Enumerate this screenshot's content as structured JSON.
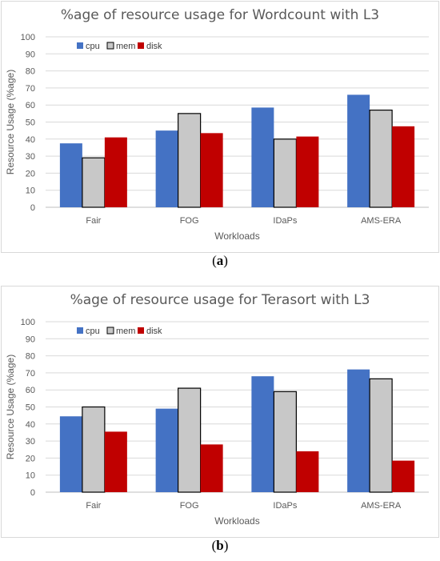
{
  "colors": {
    "cpu": "#4472c4",
    "mem": "#c8c8c8",
    "disk": "#c00000",
    "grid": "#d9d9d9",
    "text": "#595959"
  },
  "captions": {
    "a": "a",
    "b": "b"
  },
  "chart_data": [
    {
      "type": "bar",
      "title": "%age of resource usage for Wordcount with  L3",
      "xlabel": "Workloads",
      "ylabel": "Resource Usage (%age)",
      "categories": [
        "Fair",
        "FOG",
        "IDaPs",
        "AMS-ERA"
      ],
      "yticks": [
        "0",
        "10",
        "20",
        "30",
        "40",
        "50",
        "60",
        "70",
        "80",
        "90",
        "100"
      ],
      "ylim": [
        0,
        100
      ],
      "grid": true,
      "legend_position": "top-left",
      "series": [
        {
          "name": "cpu",
          "values": [
            37.5,
            45,
            58.5,
            66
          ]
        },
        {
          "name": "mem",
          "values": [
            29,
            55,
            40,
            57
          ]
        },
        {
          "name": "disk",
          "values": [
            41,
            43.5,
            41.5,
            47.5
          ]
        }
      ]
    },
    {
      "type": "bar",
      "title": "%age of resource usage for Terasort with  L3",
      "xlabel": "Workloads",
      "ylabel": "Resource Usage (%age)",
      "categories": [
        "Fair",
        "FOG",
        "IDaPs",
        "AMS-ERA"
      ],
      "yticks": [
        "0",
        "10",
        "20",
        "30",
        "40",
        "50",
        "60",
        "70",
        "80",
        "90",
        "100"
      ],
      "ylim": [
        0,
        100
      ],
      "grid": true,
      "legend_position": "top-left",
      "series": [
        {
          "name": "cpu",
          "values": [
            44.5,
            49,
            68,
            72
          ]
        },
        {
          "name": "mem",
          "values": [
            50,
            61,
            59,
            66.5
          ]
        },
        {
          "name": "disk",
          "values": [
            35.5,
            28,
            24,
            18.5
          ]
        }
      ]
    }
  ]
}
